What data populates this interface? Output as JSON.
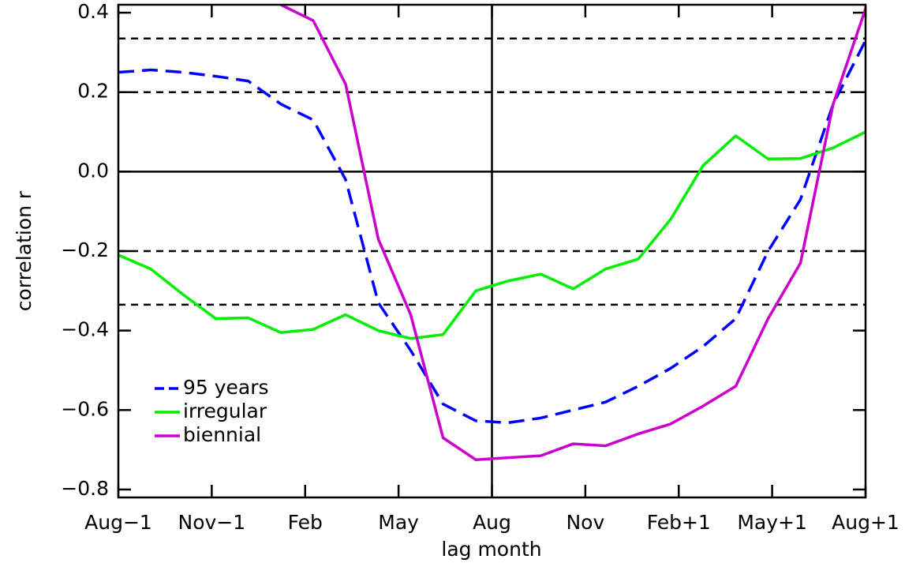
{
  "chart_data": {
    "type": "line",
    "x_label": "lag month",
    "y_label": "correlation r",
    "x": [
      0,
      1.04,
      2.09,
      3.13,
      4.17,
      5.22,
      6.26,
      7.3,
      8.35,
      9.39,
      10.43,
      11.48,
      12.52,
      13.57,
      14.61,
      15.65,
      16.7,
      17.74,
      18.78,
      19.83,
      20.87,
      21.91,
      22.96,
      24
    ],
    "series": [
      {
        "name": "95 years",
        "color": "#0000ff",
        "dash": true,
        "values": [
          0.25,
          0.256,
          0.25,
          0.24,
          0.228,
          0.17,
          0.13,
          -0.02,
          -0.33,
          -0.45,
          -0.585,
          -0.627,
          -0.632,
          -0.62,
          -0.6,
          -0.58,
          -0.54,
          -0.495,
          -0.44,
          -0.37,
          -0.2,
          -0.07,
          0.17,
          0.33
        ]
      },
      {
        "name": "irregular",
        "color": "#00ee00",
        "values": [
          -0.21,
          -0.245,
          -0.31,
          -0.37,
          -0.368,
          -0.405,
          -0.397,
          -0.36,
          -0.4,
          -0.42,
          -0.41,
          -0.3,
          -0.275,
          -0.258,
          -0.295,
          -0.245,
          -0.22,
          -0.12,
          0.015,
          0.09,
          0.032,
          0.033,
          0.06,
          0.1
        ]
      },
      {
        "name": "biennial",
        "color": "#cc00cc",
        "values": [
          null,
          null,
          null,
          null,
          null,
          0.42,
          0.38,
          0.22,
          -0.17,
          -0.36,
          -0.67,
          -0.725,
          -0.72,
          -0.715,
          -0.685,
          -0.69,
          -0.66,
          -0.635,
          -0.59,
          -0.54,
          -0.37,
          -0.23,
          0.17,
          0.41
        ]
      }
    ],
    "xlim": [
      0,
      24
    ],
    "xticks": [
      {
        "value": 0,
        "label": "Aug−1"
      },
      {
        "value": 3,
        "label": "Nov−1"
      },
      {
        "value": 6,
        "label": "Feb"
      },
      {
        "value": 9,
        "label": "May"
      },
      {
        "value": 12,
        "label": "Aug"
      },
      {
        "value": 15,
        "label": "Nov"
      },
      {
        "value": 18,
        "label": "Feb+1"
      },
      {
        "value": 21,
        "label": "May+1"
      },
      {
        "value": 24,
        "label": "Aug+1"
      }
    ],
    "ylim": [
      -0.82,
      0.42
    ],
    "yticks": [
      {
        "value": -0.8,
        "label": "−0.8"
      },
      {
        "value": -0.6,
        "label": "−0.6"
      },
      {
        "value": -0.4,
        "label": "−0.4"
      },
      {
        "value": -0.2,
        "label": "−0.2"
      },
      {
        "value": 0,
        "label": "0.0"
      },
      0.2,
      0.4
    ],
    "zero_line": 0,
    "vline": 12,
    "dashed_lines": [
      0.335,
      0.2,
      -0.2,
      -0.335
    ],
    "legend": "lower left"
  }
}
